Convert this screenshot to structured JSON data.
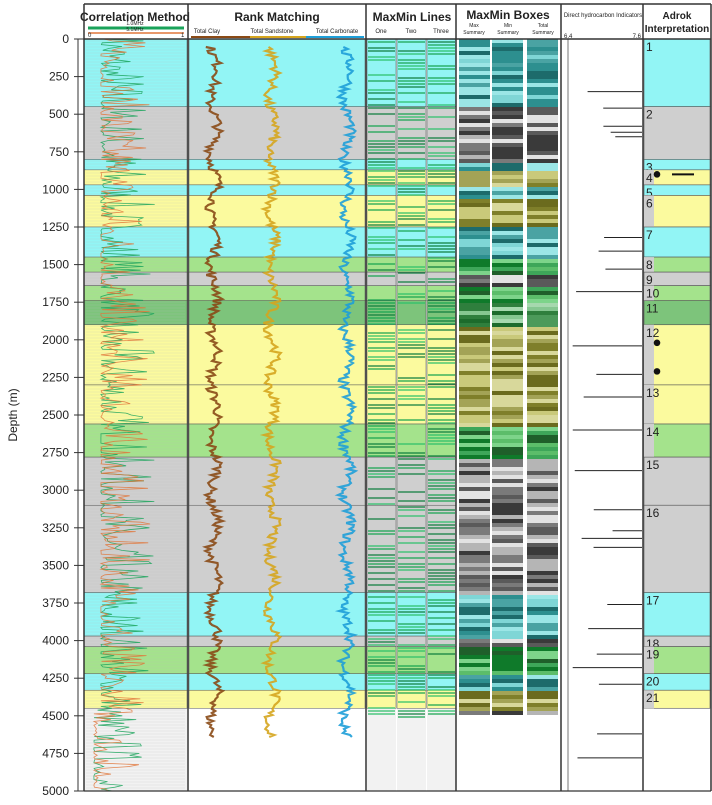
{
  "chart_data": {
    "type": "table",
    "ylabel": "Depth (m)",
    "ylim": [
      0,
      5000
    ],
    "yticks": [
      0,
      250,
      500,
      750,
      1000,
      1250,
      1500,
      1750,
      2000,
      2250,
      2500,
      2750,
      3000,
      3250,
      3500,
      3750,
      4000,
      4250,
      4500,
      4750,
      5000
    ],
    "tracks": [
      {
        "name": "Correlation Method",
        "legend": [
          "1.0MHz",
          "5.1MHz"
        ],
        "scale": [
          0,
          1
        ],
        "colors": [
          "#1aa35a",
          "#e0763a"
        ]
      },
      {
        "name": "Rank Matching",
        "subtracks": [
          {
            "name": "Total Clay",
            "color": "#8a4a16"
          },
          {
            "name": "Total Sandstone",
            "color": "#d5a51e"
          },
          {
            "name": "Total Carbonate",
            "color": "#1e9fd8"
          }
        ]
      },
      {
        "name": "MaxMin Lines",
        "subtracks": [
          {
            "name": "One"
          },
          {
            "name": "Two"
          },
          {
            "name": "Three"
          }
        ]
      },
      {
        "name": "MaxMin Boxes",
        "subtracks": [
          {
            "name": "Max Summary"
          },
          {
            "name": "Min Summary"
          },
          {
            "name": "Total Summary"
          }
        ]
      },
      {
        "name": "Direct hydrocarbon Indicators",
        "scale": [
          6.4,
          7.6
        ]
      },
      {
        "name": "Adrok Interpretation"
      }
    ],
    "zones": [
      {
        "id": "1",
        "top": 0,
        "base": 450,
        "lithology": "carbonate"
      },
      {
        "id": "2",
        "top": 450,
        "base": 800,
        "lithology": "clay"
      },
      {
        "id": "3",
        "top": 800,
        "base": 870,
        "lithology": "carbonate"
      },
      {
        "id": "4",
        "top": 870,
        "base": 970,
        "lithology": "sandstone"
      },
      {
        "id": "5",
        "top": 970,
        "base": 1040,
        "lithology": "carbonate"
      },
      {
        "id": "6",
        "top": 1040,
        "base": 1250,
        "lithology": "sandstone"
      },
      {
        "id": "7",
        "top": 1250,
        "base": 1450,
        "lithology": "carbonate"
      },
      {
        "id": "8",
        "top": 1450,
        "base": 1550,
        "lithology": "sand-shale"
      },
      {
        "id": "9",
        "top": 1550,
        "base": 1640,
        "lithology": "clay"
      },
      {
        "id": "10",
        "top": 1640,
        "base": 1740,
        "lithology": "sand-shale"
      },
      {
        "id": "11",
        "top": 1740,
        "base": 1900,
        "lithology": "shale"
      },
      {
        "id": "12",
        "top": 1900,
        "base": 2300,
        "lithology": "sandstone"
      },
      {
        "id": "13",
        "top": 2300,
        "base": 2560,
        "lithology": "sandstone"
      },
      {
        "id": "14",
        "top": 2560,
        "base": 2780,
        "lithology": "sand-shale"
      },
      {
        "id": "15",
        "top": 2780,
        "base": 3100,
        "lithology": "clay"
      },
      {
        "id": "16",
        "top": 3100,
        "base": 3680,
        "lithology": "clay"
      },
      {
        "id": "17",
        "top": 3680,
        "base": 3970,
        "lithology": "carbonate"
      },
      {
        "id": "18",
        "top": 3970,
        "base": 4040,
        "lithology": "clay"
      },
      {
        "id": "19",
        "top": 4040,
        "base": 4220,
        "lithology": "sand-shale"
      },
      {
        "id": "20",
        "top": 4220,
        "base": 4330,
        "lithology": "carbonate"
      },
      {
        "id": "21",
        "top": 4330,
        "base": 4450,
        "lithology": "sandstone"
      }
    ],
    "hydrocarbon_markers": [
      900,
      2020,
      2210
    ],
    "dhi_spikes": [
      350,
      460,
      580,
      620,
      650,
      1320,
      1410,
      1530,
      1680,
      2040,
      2230,
      2380,
      2600,
      2870,
      3130,
      3270,
      3320,
      3380,
      3760,
      3920,
      4090,
      4180,
      4290,
      4620,
      4780
    ],
    "lithology_colors": {
      "carbonate": "#92f5f5",
      "clay": "#cfcfcf",
      "sandstone": "#fbfa9e",
      "sand-shale": "#a4e38c",
      "shale": "#7dc47b",
      "blank": "#f2f2f2"
    }
  }
}
